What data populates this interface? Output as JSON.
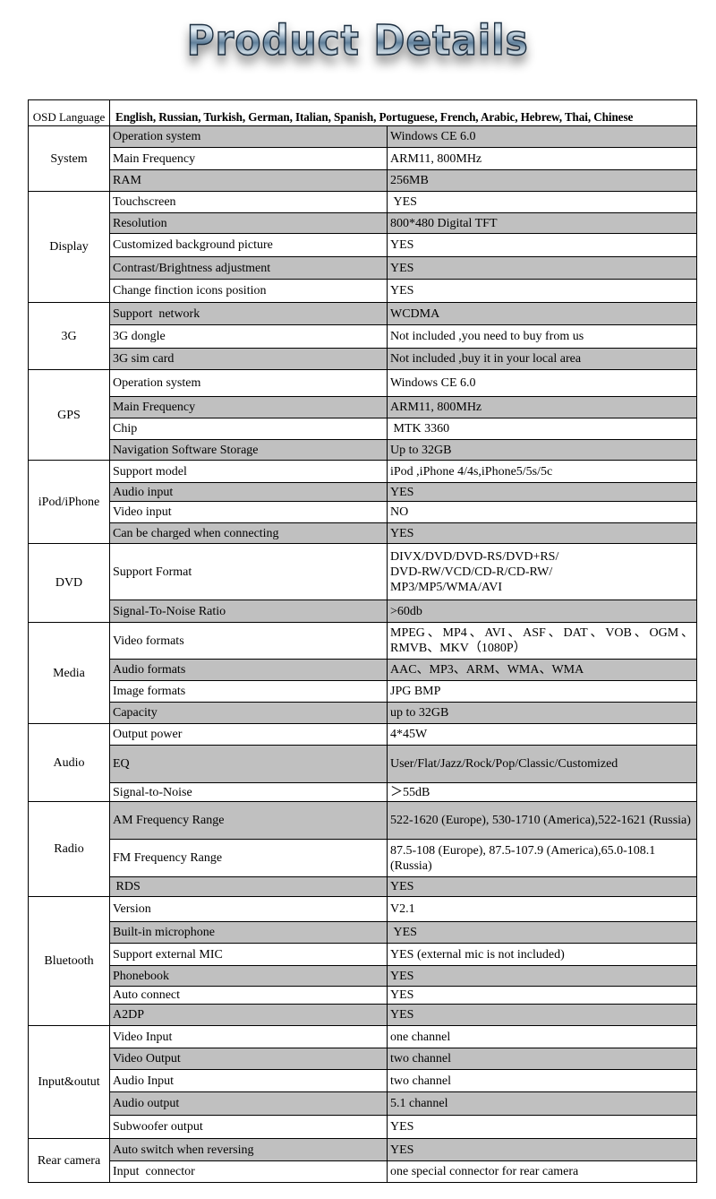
{
  "header": {
    "title": "Product Details"
  },
  "colors": {
    "shaded_row": "#c0c0c0",
    "border": "#000000"
  },
  "osd": {
    "label": "OSD Language",
    "value": "English, Russian, Turkish, German, Italian, Spanish, Portuguese, French, Arabic, Hebrew, Thai, Chinese"
  },
  "sections": [
    {
      "category": "System",
      "rows": [
        {
          "label": "Operation system",
          "value": "Windows CE 6.0",
          "shaded": true
        },
        {
          "label": "Main Frequency",
          "value": "ARM11, 800MHz",
          "shaded": false
        },
        {
          "label": "RAM",
          "value": "256MB",
          "shaded": true
        }
      ]
    },
    {
      "category": "Display",
      "rows": [
        {
          "label": "Touchscreen",
          "value": " YES",
          "shaded": false
        },
        {
          "label": "Resolution",
          "value": "800*480 Digital TFT",
          "shaded": true
        },
        {
          "label": "Customized background picture",
          "value": "YES",
          "shaded": false
        },
        {
          "label": "Contrast/Brightness adjustment",
          "value": "YES",
          "shaded": true
        },
        {
          "label": "Change finction icons position",
          "value": "YES",
          "shaded": false
        }
      ]
    },
    {
      "category": "3G",
      "rows": [
        {
          "label": "Support  network",
          "value": "WCDMA",
          "shaded": true
        },
        {
          "label": "3G dongle",
          "value": "Not included ,you need to buy from us",
          "shaded": false
        },
        {
          "label": "3G sim card",
          "value": "Not included ,buy it in your local area",
          "shaded": true
        }
      ]
    },
    {
      "category": "GPS",
      "rows": [
        {
          "label": "Operation system",
          "value": "Windows CE 6.0",
          "shaded": false
        },
        {
          "label": "Main Frequency",
          "value": "ARM11, 800MHz",
          "shaded": true
        },
        {
          "label": "Chip",
          "value": " MTK 3360",
          "shaded": false
        },
        {
          "label": "Navigation Software Storage",
          "value": "Up to 32GB",
          "shaded": true
        }
      ]
    },
    {
      "category": "iPod/iPhone",
      "rows": [
        {
          "label": "Support model",
          "value": "iPod ,iPhone 4/4s,iPhone5/5s/5c",
          "shaded": false
        },
        {
          "label": "Audio input",
          "value": "YES",
          "shaded": true
        },
        {
          "label": "Video input",
          "value": "NO",
          "shaded": false
        },
        {
          "label": "Can be charged when connecting",
          "value": "YES",
          "shaded": true
        }
      ]
    },
    {
      "category": "DVD",
      "rows": [
        {
          "label": "Support Format",
          "value": "DIVX/DVD/DVD-RS/DVD+RS/\nDVD-RW/VCD/CD-R/CD-RW/\nMP3/MP5/WMA/AVI",
          "shaded": false
        },
        {
          "label": "Signal-To-Noise Ratio",
          "value": ">60db",
          "shaded": true
        }
      ]
    },
    {
      "category": "Media",
      "rows": [
        {
          "label": "Video formats",
          "value": "MPEG、MP4、AVI、ASF、DAT、VOB、OGM、RMVB、MKV（1080P）",
          "shaded": false
        },
        {
          "label": "Audio formats",
          "value": "AAC、MP3、ARM、WMA、WMA",
          "shaded": true
        },
        {
          "label": "Image formats",
          "value": "JPG BMP",
          "shaded": false
        },
        {
          "label": "Capacity",
          "value": "up to 32GB",
          "shaded": true
        }
      ]
    },
    {
      "category": "Audio",
      "rows": [
        {
          "label": "Output power",
          "value": "4*45W",
          "shaded": false
        },
        {
          "label": "EQ",
          "value": "User/Flat/Jazz/Rock/Pop/Classic/Customized",
          "shaded": true
        },
        {
          "label": "Signal-to-Noise",
          "value": "＞55dB",
          "shaded": false
        }
      ]
    },
    {
      "category": "Radio",
      "rows": [
        {
          "label": "AM Frequency Range",
          "value": "522-1620 (Europe), 530-1710 (America),522-1621 (Russia)",
          "shaded": true
        },
        {
          "label": "FM Frequency Range",
          "value": "87.5-108 (Europe), 87.5-107.9 (America),65.0-108.1 (Russia)",
          "shaded": false
        },
        {
          "label": " RDS",
          "value": "YES",
          "shaded": true
        }
      ]
    },
    {
      "category": "Bluetooth",
      "rows": [
        {
          "label": "Version",
          "value": "V2.1",
          "shaded": false
        },
        {
          "label": "Built-in microphone",
          "value": " YES",
          "shaded": true
        },
        {
          "label": "Support external MIC",
          "value": "YES (external mic is not included)",
          "shaded": false
        },
        {
          "label": "Phonebook",
          "value": "YES",
          "shaded": true
        },
        {
          "label": "Auto connect",
          "value": "YES",
          "shaded": false
        },
        {
          "label": "A2DP",
          "value": "YES",
          "shaded": true
        }
      ]
    },
    {
      "category": "Input&outut",
      "rows": [
        {
          "label": "Video Input",
          "value": "one channel",
          "shaded": false
        },
        {
          "label": "Video Output",
          "value": "two channel",
          "shaded": true
        },
        {
          "label": "Audio Input",
          "value": "two channel",
          "shaded": false
        },
        {
          "label": "Audio output",
          "value": "5.1 channel",
          "shaded": true
        },
        {
          "label": "Subwoofer output",
          "value": "YES",
          "shaded": false
        }
      ]
    },
    {
      "category": "Rear camera",
      "rows": [
        {
          "label": "Auto switch when reversing",
          "value": "YES",
          "shaded": true
        },
        {
          "label": "Input  connector",
          "value": "one special connector for rear camera",
          "shaded": false
        }
      ]
    }
  ]
}
